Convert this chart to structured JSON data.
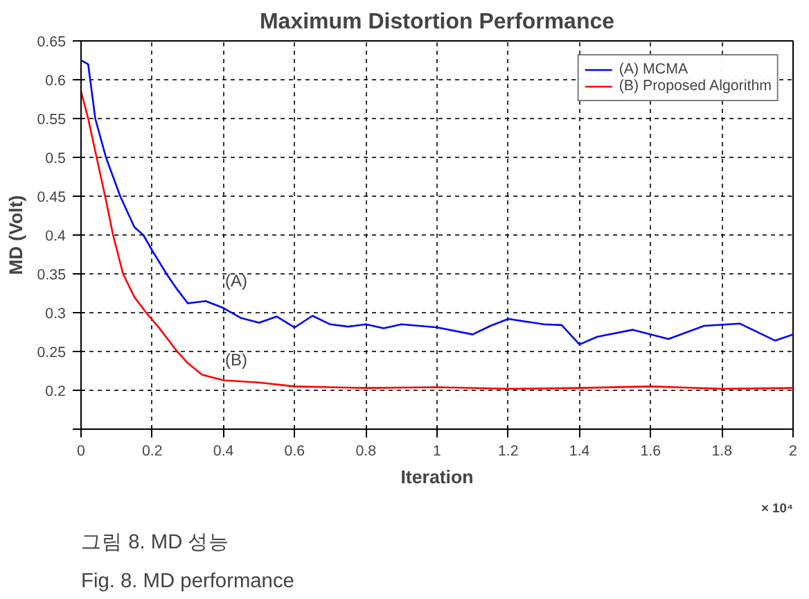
{
  "chart_data": {
    "type": "line",
    "title": "Maximum Distortion Performance",
    "xlabel": "Iteration",
    "ylabel": "MD (Volt)",
    "xlim": [
      0,
      2
    ],
    "ylim": [
      0.15,
      0.65
    ],
    "xticks": [
      0,
      0.2,
      0.4,
      0.6,
      0.8,
      1,
      1.2,
      1.4,
      1.6,
      1.8,
      2
    ],
    "yticks": [
      {
        "value": 0.15,
        "label": null
      },
      0.2,
      0.25,
      0.3,
      0.35,
      0.4,
      0.45,
      0.5,
      0.55,
      0.6,
      0.65
    ],
    "grid": true,
    "legend": "top right",
    "line_style": "solid",
    "series": [
      {
        "name": "(A) MCMA",
        "color": "#0000ff",
        "x": [
          0,
          0.02,
          0.04,
          0.07,
          0.11,
          0.15,
          0.175,
          0.2,
          0.24,
          0.27,
          0.3,
          0.35,
          0.4,
          0.45,
          0.5,
          0.55,
          0.6,
          0.65,
          0.7,
          0.75,
          0.8,
          0.85,
          0.9,
          1.0,
          1.1,
          1.15,
          1.2,
          1.3,
          1.35,
          1.4,
          1.45,
          1.55,
          1.65,
          1.75,
          1.85,
          1.95,
          2.0
        ],
        "values": [
          0.625,
          0.62,
          0.55,
          0.5,
          0.45,
          0.41,
          0.4,
          0.38,
          0.35,
          0.33,
          0.312,
          0.315,
          0.306,
          0.293,
          0.287,
          0.295,
          0.281,
          0.296,
          0.285,
          0.282,
          0.285,
          0.28,
          0.285,
          0.281,
          0.272,
          0.283,
          0.292,
          0.285,
          0.284,
          0.259,
          0.269,
          0.278,
          0.266,
          0.283,
          0.286,
          0.264,
          0.272
        ]
      },
      {
        "name": "(B) Proposed Algorithm",
        "color": "#ff0000",
        "x": [
          0,
          0.02,
          0.07,
          0.09,
          0.118,
          0.15,
          0.183,
          0.22,
          0.27,
          0.3,
          0.34,
          0.4,
          0.5,
          0.6,
          0.7,
          0.8,
          1.0,
          1.2,
          1.4,
          1.6,
          1.8,
          2.0
        ],
        "values": [
          0.585,
          0.55,
          0.445,
          0.4,
          0.35,
          0.32,
          0.3,
          0.28,
          0.25,
          0.235,
          0.22,
          0.213,
          0.21,
          0.205,
          0.204,
          0.203,
          0.204,
          0.202,
          0.203,
          0.205,
          0.202,
          0.203
        ]
      }
    ],
    "annotations": [
      "(A)",
      "(B)",
      "× 10⁴",
      "그림 8. MD 성능",
      "Fig. 8. MD performance"
    ]
  }
}
